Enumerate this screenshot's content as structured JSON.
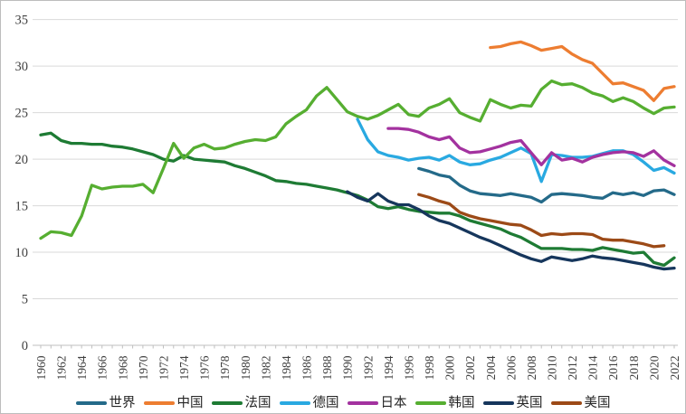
{
  "style": {
    "background": "#FFFFFF",
    "border_color": "#BDBDBD",
    "grid_color": "#D9D9D9",
    "axis_color": "#BFBFBF",
    "axis_text_color": "#404040",
    "legend_text_color": "#262626"
  },
  "legend": {
    "position": "bottom-center",
    "items": [
      "世界",
      "中国",
      "法国",
      "德国",
      "日本",
      "韩国",
      "英国",
      "美国"
    ]
  },
  "chart_data": {
    "type": "line",
    "title": "",
    "xlabel": "",
    "ylabel": "",
    "x_range": [
      1960,
      2022
    ],
    "xtick_step": 2,
    "ylim": [
      0,
      35
    ],
    "yticks": [
      0,
      5,
      10,
      15,
      20,
      25,
      30,
      35
    ],
    "grid": "horizontal",
    "series": [
      {
        "name": "世界",
        "color": "#246A89",
        "start_year": 1997,
        "values": [
          19.0,
          18.7,
          18.3,
          18.1,
          17.2,
          16.6,
          16.3,
          16.2,
          16.1,
          16.3,
          16.1,
          15.9,
          15.4,
          16.2,
          16.3,
          16.2,
          16.1,
          15.9,
          15.8,
          16.4,
          16.2,
          16.4,
          16.1,
          16.6,
          16.7,
          16.2
        ]
      },
      {
        "name": "中国",
        "color": "#ED7D31",
        "start_year": 2004,
        "values": [
          32.0,
          32.1,
          32.4,
          32.6,
          32.2,
          31.7,
          31.9,
          32.1,
          31.3,
          30.7,
          30.3,
          29.2,
          28.1,
          28.2,
          27.8,
          27.4,
          26.3,
          27.6,
          27.8
        ]
      },
      {
        "name": "法国",
        "color": "#1E7B34",
        "start_year": 1960,
        "values": [
          22.6,
          22.8,
          22.0,
          21.7,
          21.7,
          21.6,
          21.6,
          21.4,
          21.3,
          21.1,
          20.8,
          20.5,
          20.0,
          19.8,
          20.4,
          20.0,
          19.9,
          19.8,
          19.7,
          19.3,
          19.0,
          18.6,
          18.2,
          17.7,
          17.6,
          17.4,
          17.3,
          17.1,
          16.9,
          16.7,
          16.4,
          16.1,
          15.6,
          14.9,
          14.7,
          14.9,
          14.6,
          14.4,
          14.3,
          14.2,
          14.2,
          13.9,
          13.4,
          13.1,
          12.8,
          12.5,
          12.0,
          11.6,
          11.0,
          10.4,
          10.4,
          10.4,
          10.3,
          10.3,
          10.2,
          10.5,
          10.3,
          10.1,
          9.9,
          10.0,
          8.9,
          8.6,
          9.4
        ]
      },
      {
        "name": "德国",
        "color": "#29A9E1",
        "start_year": 1991,
        "values": [
          24.3,
          22.1,
          20.8,
          20.4,
          20.2,
          19.9,
          20.1,
          20.2,
          19.9,
          20.4,
          19.7,
          19.4,
          19.5,
          19.9,
          20.2,
          20.7,
          21.2,
          20.6,
          17.6,
          20.5,
          20.4,
          20.2,
          20.2,
          20.3,
          20.6,
          20.9,
          20.9,
          20.5,
          19.7,
          18.8,
          19.1,
          18.5
        ]
      },
      {
        "name": "日本",
        "color": "#A3329F",
        "start_year": 1994,
        "values": [
          23.3,
          23.3,
          23.2,
          22.9,
          22.4,
          22.1,
          22.4,
          21.2,
          20.7,
          20.8,
          21.1,
          21.4,
          21.8,
          22.0,
          20.7,
          19.4,
          20.7,
          19.9,
          20.1,
          19.7,
          20.2,
          20.5,
          20.7,
          20.8,
          20.7,
          20.3,
          20.9,
          19.9,
          19.3
        ]
      },
      {
        "name": "韩国",
        "color": "#56AE31",
        "start_year": 1960,
        "values": [
          11.5,
          12.2,
          12.1,
          11.8,
          13.9,
          17.2,
          16.8,
          17.0,
          17.1,
          17.1,
          17.3,
          16.4,
          19.0,
          21.7,
          20.1,
          21.2,
          21.6,
          21.1,
          21.2,
          21.6,
          21.9,
          22.1,
          22.0,
          22.4,
          23.8,
          24.6,
          25.3,
          26.8,
          27.7,
          26.4,
          25.1,
          24.6,
          24.3,
          24.7,
          25.3,
          25.9,
          24.8,
          24.6,
          25.5,
          25.9,
          26.5,
          25.0,
          24.5,
          24.1,
          26.4,
          25.9,
          25.5,
          25.8,
          25.7,
          27.5,
          28.4,
          28.0,
          28.1,
          27.7,
          27.1,
          26.8,
          26.2,
          26.6,
          26.2,
          25.5,
          24.9,
          25.5,
          25.6
        ]
      },
      {
        "name": "英国",
        "color": "#16365C",
        "start_year": 1990,
        "values": [
          16.5,
          15.9,
          15.5,
          16.3,
          15.5,
          15.1,
          15.1,
          14.6,
          13.9,
          13.4,
          13.1,
          12.6,
          12.1,
          11.6,
          11.2,
          10.7,
          10.2,
          9.7,
          9.3,
          9.0,
          9.5,
          9.3,
          9.1,
          9.3,
          9.6,
          9.4,
          9.3,
          9.1,
          8.9,
          8.7,
          8.4,
          8.2,
          8.3
        ]
      },
      {
        "name": "美国",
        "color": "#9C4A17",
        "start_year": 1997,
        "values": [
          16.2,
          15.9,
          15.5,
          15.2,
          14.3,
          13.9,
          13.6,
          13.4,
          13.2,
          13.0,
          12.9,
          12.4,
          11.8,
          12.0,
          11.9,
          12.0,
          12.0,
          11.9,
          11.4,
          11.3,
          11.3,
          11.1,
          10.9,
          10.6,
          10.7
        ]
      }
    ]
  }
}
